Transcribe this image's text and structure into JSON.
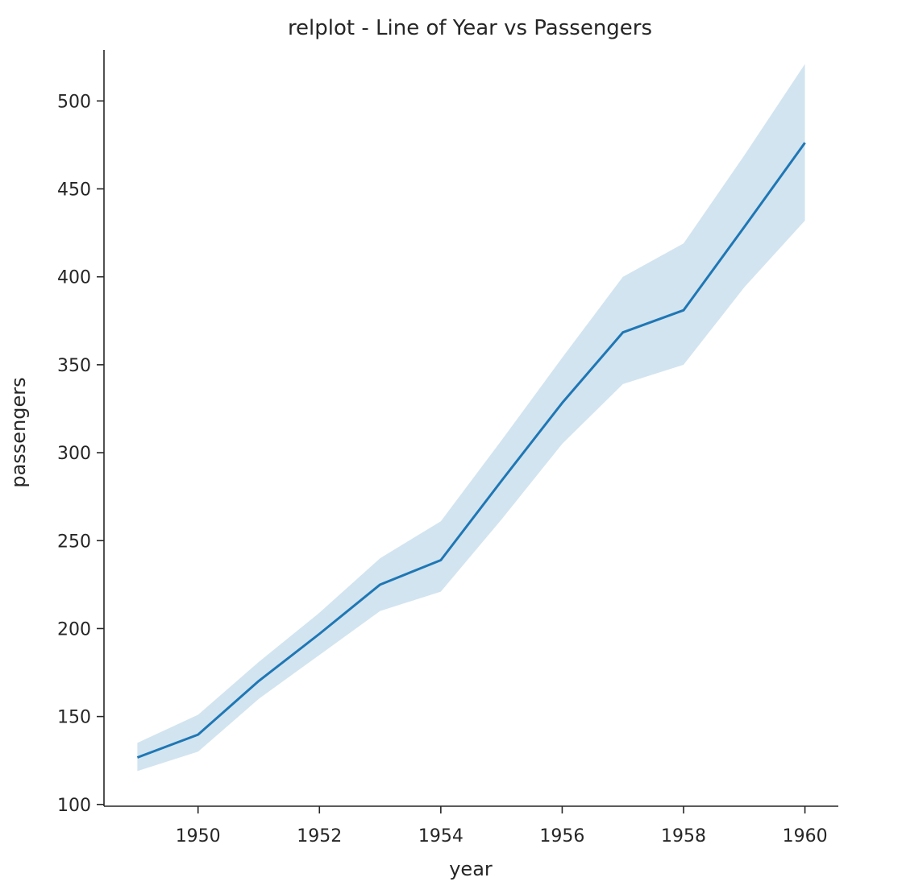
{
  "chart_data": {
    "type": "line",
    "title": "relplot - Line of Year vs Passengers",
    "xlabel": "year",
    "ylabel": "passengers",
    "xlim": [
      1948.45,
      1960.55
    ],
    "ylim": [
      99,
      529
    ],
    "x_ticks": [
      1950,
      1952,
      1954,
      1956,
      1958,
      1960
    ],
    "y_ticks": [
      100,
      150,
      200,
      250,
      300,
      350,
      400,
      450,
      500
    ],
    "grid": false,
    "x": [
      1949,
      1950,
      1951,
      1952,
      1953,
      1954,
      1955,
      1956,
      1957,
      1958,
      1959,
      1960
    ],
    "series": [
      {
        "values": [
          126.7,
          139.7,
          170.2,
          197.0,
          225.0,
          238.9,
          284.0,
          328.3,
          368.4,
          381.0,
          428.3,
          476.2
        ],
        "ci_lower": [
          119,
          130,
          160,
          185,
          210,
          221,
          262,
          305,
          339,
          350,
          394,
          432
        ],
        "ci_upper": [
          135,
          151,
          181,
          209,
          240,
          261,
          307,
          354,
          400,
          419,
          469,
          521
        ],
        "color": "#1f77b4"
      }
    ]
  }
}
